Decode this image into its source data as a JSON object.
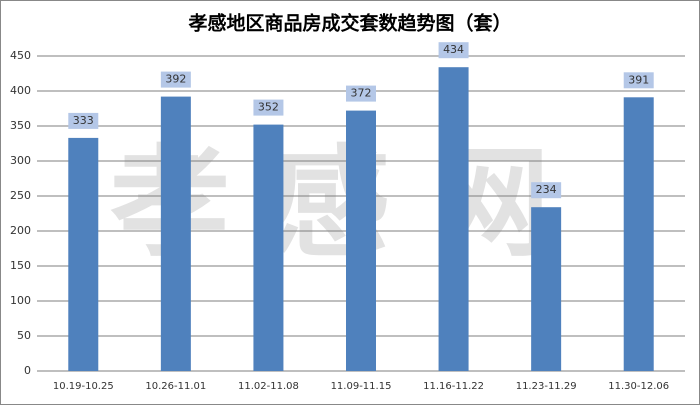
{
  "chart_data": {
    "type": "bar",
    "title": "孝感地区商品房成交套数趋势图（套）",
    "watermark": "孝感网",
    "categories": [
      "10.19-10.25",
      "10.26-11.01",
      "11.02-11.08",
      "11.09-11.15",
      "11.16-11.22",
      "11.23-11.29",
      "11.30-12.06"
    ],
    "values": [
      333,
      392,
      352,
      372,
      434,
      234,
      391
    ],
    "color": "#4f81bd",
    "ylim": [
      0,
      450
    ],
    "yticks": [
      0,
      50,
      100,
      150,
      200,
      250,
      300,
      350,
      400,
      450
    ],
    "grid": true
  }
}
